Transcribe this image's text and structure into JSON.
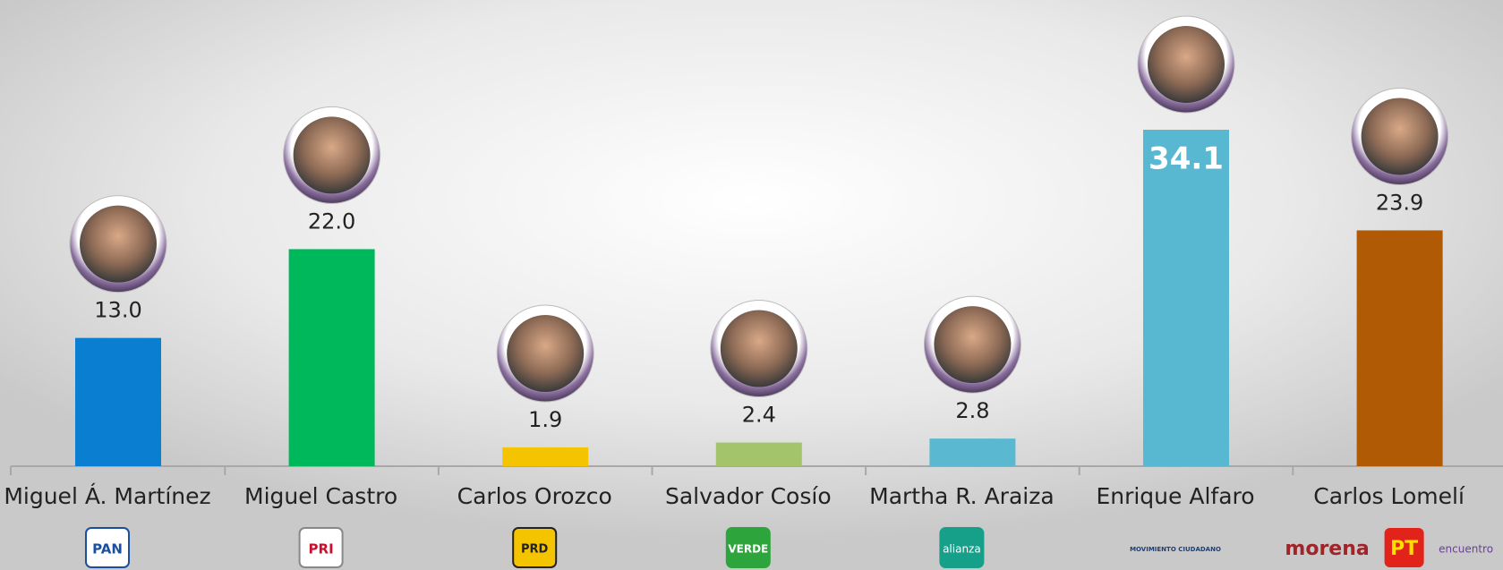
{
  "chart_data": {
    "type": "bar",
    "categories": [
      "Miguel Á. Martínez",
      "Miguel Castro",
      "Carlos Orozco",
      "Salvador Cosío",
      "Martha R. Araiza",
      "Enrique Alfaro",
      "Carlos Lomelí"
    ],
    "values": [
      13.0,
      22.0,
      1.9,
      2.4,
      2.8,
      34.1,
      23.9
    ],
    "value_labels": [
      "13.0",
      "22.0",
      "1.9",
      "2.4",
      "2.8",
      "34.1",
      "23.9"
    ],
    "colors": [
      "#0a7fd1",
      "#00b85c",
      "#f5c400",
      "#a3c46b",
      "#5ab9d0",
      "#58b8d1",
      "#b05a06"
    ]
  },
  "party_logos": [
    [
      "PAN"
    ],
    [
      "PRI"
    ],
    [
      "PRD"
    ],
    [
      "VERDE"
    ],
    [
      "alianza"
    ],
    [
      "MOVIMIENTO CIUDADANO"
    ],
    [
      "morena",
      "PT",
      "encuentro"
    ]
  ]
}
